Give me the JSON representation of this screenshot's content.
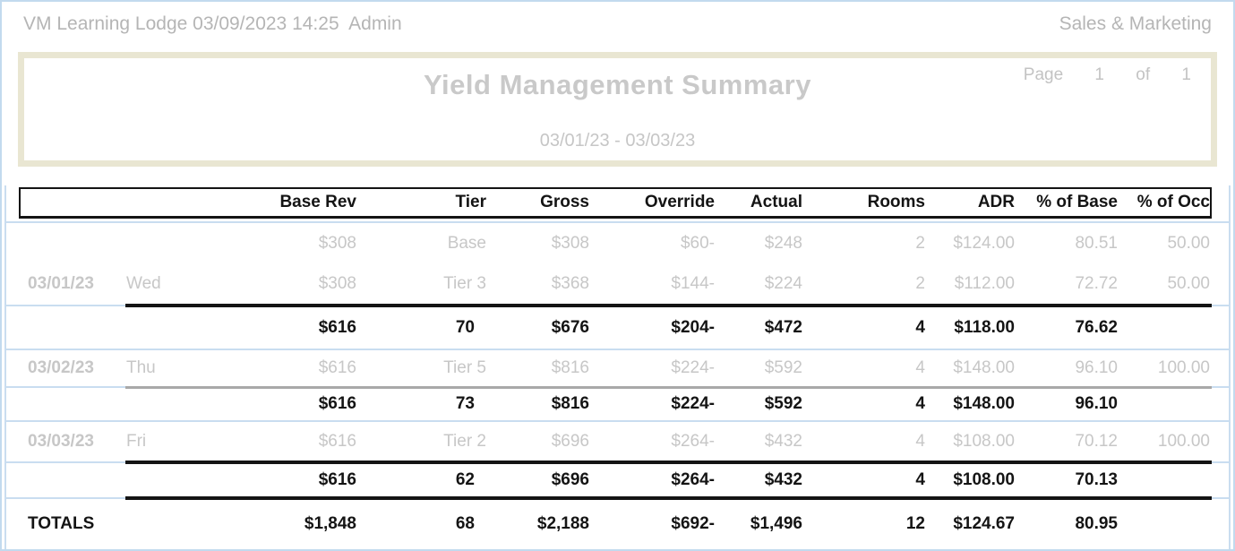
{
  "header_bar": {
    "left": "VM Learning Lodge 03/09/2023 14:25  Admin",
    "right": "Sales & Marketing"
  },
  "report_header": {
    "title": "Yield Management Summary",
    "page_label": "Page",
    "page_number": "1",
    "of_label": "of",
    "total_pages": "1",
    "date_range": "03/01/23 - 03/03/23"
  },
  "table": {
    "columns": [
      "",
      "",
      "Base Rev",
      "Tier",
      "Gross",
      "Override",
      "Actual",
      "Rooms",
      "ADR",
      "% of Base",
      "% of Occ"
    ],
    "sections": [
      {
        "type": "detail",
        "bottom_line": "black",
        "rows": [
          {
            "cells": [
              "",
              "",
              "$308",
              "Base",
              "$308",
              "$60-",
              "$248",
              "2",
              "$124.00",
              "80.51",
              "50.00"
            ]
          },
          {
            "cells": [
              "03/01/23",
              "Wed",
              "$308",
              "Tier 3",
              "$368",
              "$144-",
              "$224",
              "2",
              "$112.00",
              "72.72",
              "50.00"
            ]
          }
        ]
      },
      {
        "type": "subtotal",
        "rows": [
          {
            "cells": [
              "",
              "",
              "$616",
              "70",
              "$676",
              "$204-",
              "$472",
              "4",
              "$118.00",
              "76.62",
              ""
            ]
          }
        ]
      },
      {
        "type": "detail",
        "bottom_line": "gray",
        "rows": [
          {
            "cells": [
              "03/02/23",
              "Thu",
              "$616",
              "Tier 5",
              "$816",
              "$224-",
              "$592",
              "4",
              "$148.00",
              "96.10",
              "100.00"
            ]
          }
        ]
      },
      {
        "type": "subtotal",
        "rows": [
          {
            "cells": [
              "",
              "",
              "$616",
              "73",
              "$816",
              "$224-",
              "$592",
              "4",
              "$148.00",
              "96.10",
              ""
            ]
          }
        ]
      },
      {
        "type": "detail",
        "bottom_line": "black",
        "rows": [
          {
            "cells": [
              "03/03/23",
              "Fri",
              "$616",
              "Tier 2",
              "$696",
              "$264-",
              "$432",
              "4",
              "$108.00",
              "70.12",
              "100.00"
            ]
          }
        ]
      },
      {
        "type": "subtotal",
        "bottom_line": "black",
        "rows": [
          {
            "cells": [
              "",
              "",
              "$616",
              "62",
              "$696",
              "$264-",
              "$432",
              "4",
              "$108.00",
              "70.13",
              ""
            ]
          }
        ]
      },
      {
        "type": "total",
        "rows": [
          {
            "cells": [
              "TOTALS",
              "",
              "$1,848",
              "68",
              "$2,188",
              "$692-",
              "$1,496",
              "12",
              "$124.67",
              "80.95",
              ""
            ]
          }
        ]
      }
    ]
  },
  "colors": {
    "title_box_border": "#e9e6d2",
    "panel_line": "#c9ddf0",
    "muted_text": "#c7c7c7",
    "table_text": "#141414"
  }
}
